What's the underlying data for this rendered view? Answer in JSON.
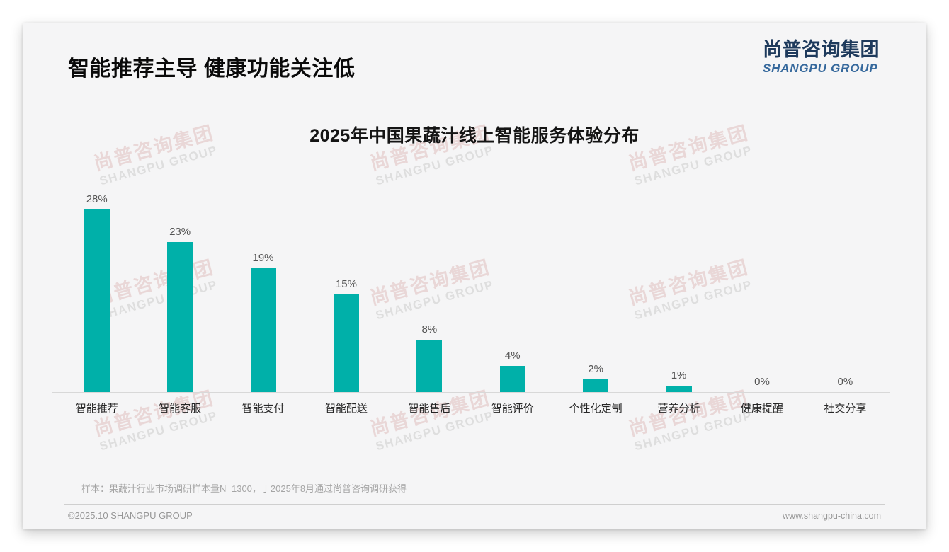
{
  "header": {
    "title": "智能推荐主导 健康功能关注低",
    "logo_zh": "尚普咨询集团",
    "logo_en": "SHANGPU GROUP"
  },
  "chart_data": {
    "type": "bar",
    "title": "2025年中国果蔬汁线上智能服务体验分布",
    "categories": [
      "智能推荐",
      "智能客服",
      "智能支付",
      "智能配送",
      "智能售后",
      "智能评价",
      "个性化定制",
      "营养分析",
      "健康提醒",
      "社交分享"
    ],
    "values": [
      28,
      23,
      19,
      15,
      8,
      4,
      2,
      1,
      0,
      0
    ],
    "value_labels": [
      "28%",
      "23%",
      "19%",
      "15%",
      "8%",
      "4%",
      "2%",
      "1%",
      "0%",
      "0%"
    ],
    "value_suffix": "%",
    "xlabel": "",
    "ylabel": "",
    "ylim": [
      0,
      30
    ],
    "grid": false,
    "legend": false,
    "bar_color": "#00b0a9"
  },
  "watermark": {
    "zh": "尚普咨询集团",
    "en": "SHANGPU GROUP"
  },
  "note": "样本：果蔬汁行业市场调研样本量N=1300，于2025年8月通过尚普咨询调研获得",
  "footer": {
    "left": "©2025.10 SHANGPU GROUP",
    "right": "www.shangpu-china.com"
  },
  "colors": {
    "bar": "#00b0a9",
    "card_background": "#f5f5f6",
    "logo_zh": "#1e3a5c",
    "logo_en": "#35689c",
    "watermark_zh": "#e9d7d7",
    "watermark_en": "#dedede"
  }
}
